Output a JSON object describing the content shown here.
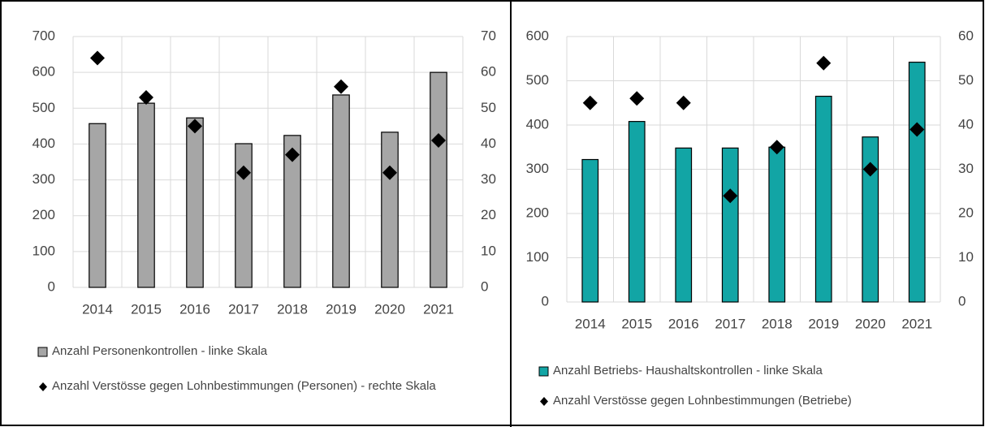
{
  "chart_data": [
    {
      "type": "bar",
      "categories": [
        "2014",
        "2015",
        "2016",
        "2017",
        "2018",
        "2019",
        "2020",
        "2021"
      ],
      "series": [
        {
          "name": "Anzahl Personenkontrollen - linke Skala",
          "type": "bar",
          "color": "#a6a6a6",
          "values": [
            457,
            514,
            473,
            401,
            424,
            537,
            433,
            600
          ]
        },
        {
          "name": "Anzahl Verstösse gegen Lohnbestimmungen (Personen) - rechte Skala",
          "type": "scatter",
          "axis": "y2",
          "color": "#000000",
          "values": [
            64,
            53,
            45,
            32,
            37,
            56,
            32,
            41
          ]
        }
      ],
      "ylim": [
        0,
        700
      ],
      "yticks": [
        0,
        100,
        200,
        300,
        400,
        500,
        600,
        700
      ],
      "y2lim": [
        0,
        70
      ],
      "y2ticks": [
        0,
        10,
        20,
        30,
        40,
        50,
        60,
        70
      ],
      "grid": true
    },
    {
      "type": "bar",
      "categories": [
        "2014",
        "2015",
        "2016",
        "2017",
        "2018",
        "2019",
        "2020",
        "2021"
      ],
      "series": [
        {
          "name": "Anzahl Betriebs- Haushaltskontrollen - linke Skala",
          "type": "bar",
          "color": "#12a5a5",
          "values": [
            322,
            408,
            348,
            348,
            350,
            465,
            373,
            542
          ]
        },
        {
          "name": "Anzahl Verstösse gegen Lohnbestimmungen (Betriebe)",
          "type": "scatter",
          "axis": "y2",
          "color": "#000000",
          "values": [
            45,
            46,
            45,
            24,
            35,
            54,
            30,
            39
          ]
        }
      ],
      "ylim": [
        0,
        600
      ],
      "yticks": [
        0,
        100,
        200,
        300,
        400,
        500,
        600
      ],
      "y2lim": [
        0,
        60
      ],
      "y2ticks": [
        0,
        10,
        20,
        30,
        40,
        50,
        60
      ],
      "grid": true
    }
  ]
}
